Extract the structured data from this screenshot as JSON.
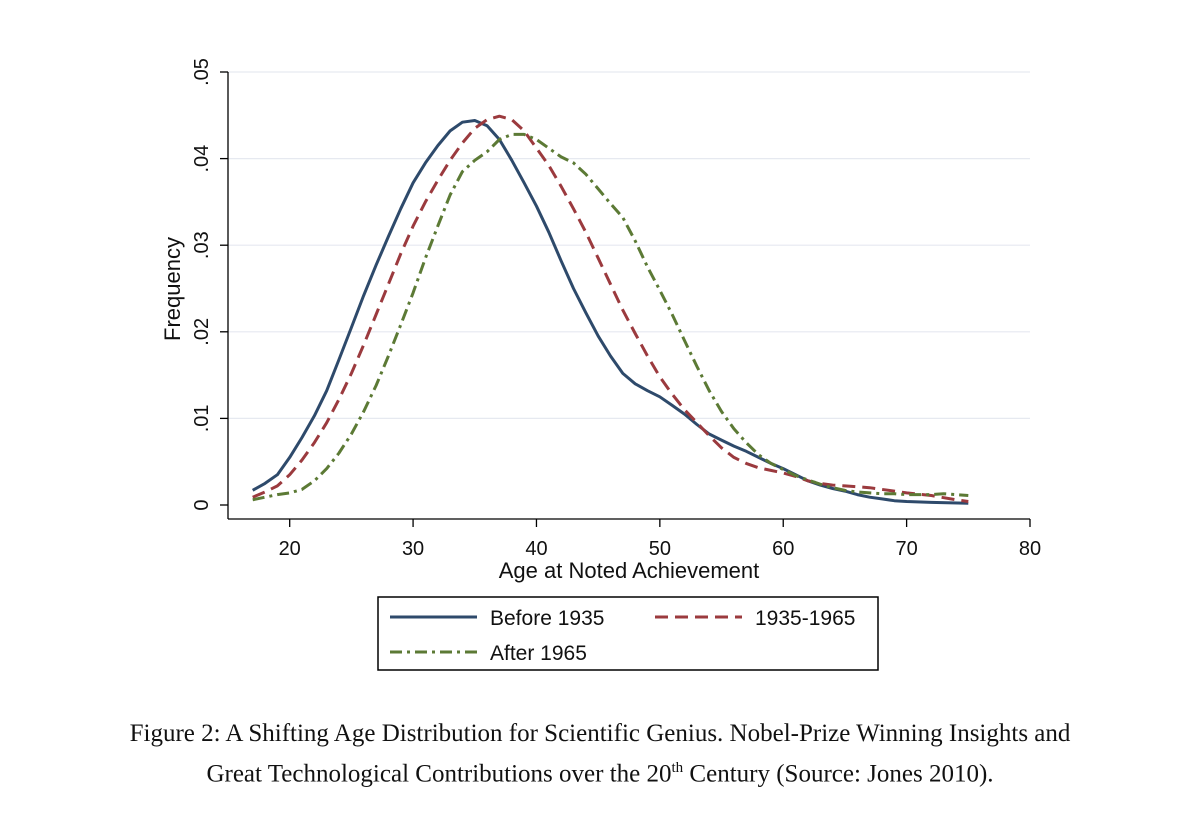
{
  "chart_data": {
    "type": "line",
    "title": "",
    "xlabel": "Age at Noted Achievement",
    "ylabel": "Frequency",
    "xlim": [
      15,
      80
    ],
    "ylim": [
      0,
      0.05
    ],
    "xticks": [
      20,
      30,
      40,
      50,
      60,
      70,
      80
    ],
    "xtick_labels": [
      "20",
      "30",
      "40",
      "50",
      "60",
      "70",
      "80"
    ],
    "yticks": [
      0,
      0.01,
      0.02,
      0.03,
      0.04,
      0.05
    ],
    "ytick_labels": [
      "0",
      ".01",
      ".02",
      ".03",
      ".04",
      ".05"
    ],
    "grid": true,
    "legend_position": "bottom",
    "series": [
      {
        "name": "Before 1935",
        "color": "#2e4a6b",
        "style": "solid",
        "points": [
          [
            17,
            0.0017
          ],
          [
            18,
            0.0025
          ],
          [
            19,
            0.0035
          ],
          [
            20,
            0.0055
          ],
          [
            21,
            0.0078
          ],
          [
            22,
            0.0103
          ],
          [
            23,
            0.0132
          ],
          [
            24,
            0.0168
          ],
          [
            25,
            0.0205
          ],
          [
            26,
            0.0242
          ],
          [
            27,
            0.0277
          ],
          [
            28,
            0.031
          ],
          [
            29,
            0.0342
          ],
          [
            30,
            0.0372
          ],
          [
            31,
            0.0395
          ],
          [
            32,
            0.0415
          ],
          [
            33,
            0.0432
          ],
          [
            34,
            0.0442
          ],
          [
            35,
            0.0444
          ],
          [
            36,
            0.0438
          ],
          [
            37,
            0.0422
          ],
          [
            38,
            0.0398
          ],
          [
            39,
            0.0372
          ],
          [
            40,
            0.0345
          ],
          [
            41,
            0.0315
          ],
          [
            42,
            0.0282
          ],
          [
            43,
            0.025
          ],
          [
            44,
            0.0222
          ],
          [
            45,
            0.0195
          ],
          [
            46,
            0.0172
          ],
          [
            47,
            0.0152
          ],
          [
            48,
            0.014
          ],
          [
            49,
            0.0132
          ],
          [
            50,
            0.0125
          ],
          [
            51,
            0.0115
          ],
          [
            52,
            0.0105
          ],
          [
            53,
            0.0093
          ],
          [
            54,
            0.0082
          ],
          [
            55,
            0.0075
          ],
          [
            56,
            0.0068
          ],
          [
            57,
            0.0062
          ],
          [
            58,
            0.0055
          ],
          [
            59,
            0.0048
          ],
          [
            60,
            0.0042
          ],
          [
            61,
            0.0035
          ],
          [
            62,
            0.0028
          ],
          [
            63,
            0.0023
          ],
          [
            64,
            0.0019
          ],
          [
            65,
            0.0016
          ],
          [
            66,
            0.0012
          ],
          [
            67,
            0.0009
          ],
          [
            68,
            0.0007
          ],
          [
            69,
            0.0005
          ],
          [
            70,
            0.0004
          ],
          [
            72,
            0.0003
          ],
          [
            75,
            0.0002
          ]
        ]
      },
      {
        "name": "1935-1965",
        "color": "#9b3a3e",
        "style": "dashed",
        "points": [
          [
            17,
            0.0009
          ],
          [
            18,
            0.0015
          ],
          [
            19,
            0.0022
          ],
          [
            20,
            0.0035
          ],
          [
            21,
            0.0052
          ],
          [
            22,
            0.0072
          ],
          [
            23,
            0.0095
          ],
          [
            24,
            0.0122
          ],
          [
            25,
            0.0152
          ],
          [
            26,
            0.0185
          ],
          [
            27,
            0.022
          ],
          [
            28,
            0.0255
          ],
          [
            29,
            0.029
          ],
          [
            30,
            0.0322
          ],
          [
            31,
            0.035
          ],
          [
            32,
            0.0375
          ],
          [
            33,
            0.0398
          ],
          [
            34,
            0.0418
          ],
          [
            35,
            0.0435
          ],
          [
            36,
            0.0445
          ],
          [
            37,
            0.0449
          ],
          [
            38,
            0.0445
          ],
          [
            39,
            0.0432
          ],
          [
            40,
            0.0412
          ],
          [
            41,
            0.0392
          ],
          [
            42,
            0.0368
          ],
          [
            43,
            0.0342
          ],
          [
            44,
            0.0315
          ],
          [
            45,
            0.0285
          ],
          [
            46,
            0.0255
          ],
          [
            47,
            0.0225
          ],
          [
            48,
            0.0198
          ],
          [
            49,
            0.0172
          ],
          [
            50,
            0.0148
          ],
          [
            51,
            0.0128
          ],
          [
            52,
            0.011
          ],
          [
            53,
            0.0095
          ],
          [
            54,
            0.008
          ],
          [
            55,
            0.0066
          ],
          [
            56,
            0.0055
          ],
          [
            57,
            0.0048
          ],
          [
            58,
            0.0043
          ],
          [
            59,
            0.004
          ],
          [
            60,
            0.0037
          ],
          [
            61,
            0.0033
          ],
          [
            62,
            0.0028
          ],
          [
            63,
            0.0025
          ],
          [
            64,
            0.0023
          ],
          [
            65,
            0.0022
          ],
          [
            66,
            0.0021
          ],
          [
            67,
            0.002
          ],
          [
            68,
            0.0018
          ],
          [
            69,
            0.0016
          ],
          [
            70,
            0.0014
          ],
          [
            72,
            0.0011
          ],
          [
            74,
            0.0006
          ],
          [
            75,
            0.0004
          ]
        ]
      },
      {
        "name": "After 1965",
        "color": "#5c7a35",
        "style": "dashdot",
        "points": [
          [
            17,
            0.0006
          ],
          [
            18,
            0.0009
          ],
          [
            19,
            0.0012
          ],
          [
            20,
            0.0014
          ],
          [
            21,
            0.0018
          ],
          [
            22,
            0.0028
          ],
          [
            23,
            0.0042
          ],
          [
            24,
            0.006
          ],
          [
            25,
            0.0082
          ],
          [
            26,
            0.0108
          ],
          [
            27,
            0.0138
          ],
          [
            28,
            0.0172
          ],
          [
            29,
            0.0208
          ],
          [
            30,
            0.0245
          ],
          [
            31,
            0.0285
          ],
          [
            32,
            0.0322
          ],
          [
            33,
            0.0358
          ],
          [
            34,
            0.0385
          ],
          [
            35,
            0.0398
          ],
          [
            36,
            0.0408
          ],
          [
            37,
            0.0422
          ],
          [
            38,
            0.0428
          ],
          [
            39,
            0.0428
          ],
          [
            40,
            0.0422
          ],
          [
            41,
            0.0412
          ],
          [
            42,
            0.0402
          ],
          [
            43,
            0.0395
          ],
          [
            44,
            0.0382
          ],
          [
            45,
            0.0365
          ],
          [
            46,
            0.0348
          ],
          [
            47,
            0.0332
          ],
          [
            48,
            0.0305
          ],
          [
            49,
            0.0275
          ],
          [
            50,
            0.0248
          ],
          [
            51,
            0.022
          ],
          [
            52,
            0.019
          ],
          [
            53,
            0.016
          ],
          [
            54,
            0.0132
          ],
          [
            55,
            0.0108
          ],
          [
            56,
            0.0088
          ],
          [
            57,
            0.0072
          ],
          [
            58,
            0.0058
          ],
          [
            59,
            0.0048
          ],
          [
            60,
            0.0041
          ],
          [
            61,
            0.0034
          ],
          [
            62,
            0.0029
          ],
          [
            63,
            0.0024
          ],
          [
            64,
            0.002
          ],
          [
            65,
            0.0017
          ],
          [
            66,
            0.0015
          ],
          [
            67,
            0.0014
          ],
          [
            68,
            0.0013
          ],
          [
            69,
            0.0013
          ],
          [
            70,
            0.0012
          ],
          [
            72,
            0.0012
          ],
          [
            73,
            0.0013
          ],
          [
            74,
            0.0012
          ],
          [
            75,
            0.0011
          ]
        ]
      }
    ]
  },
  "caption": {
    "line1": "Figure 2:  A Shifting Age Distribution for Scientific Genius.  Nobel-Prize Winning Insights and",
    "line2_before": "Great Technological Contributions over the 20",
    "line2_sup": "th",
    "line2_after": " Century (Source: Jones 2010)."
  }
}
